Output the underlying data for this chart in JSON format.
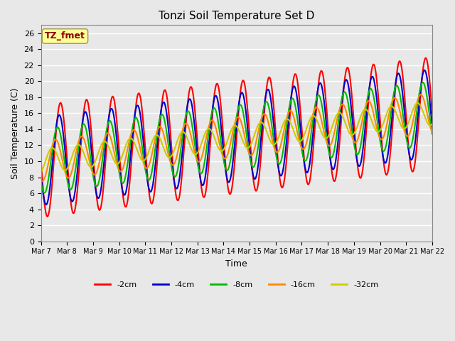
{
  "title": "Tonzi Soil Temperature Set D",
  "xlabel": "Time",
  "ylabel": "Soil Temperature (C)",
  "annotation": "TZ_fmet",
  "annotation_color": "#8B0000",
  "annotation_bg": "#FFFF99",
  "ylim": [
    0,
    27
  ],
  "yticks": [
    0,
    2,
    4,
    6,
    8,
    10,
    12,
    14,
    16,
    18,
    20,
    22,
    24,
    26
  ],
  "xtick_labels": [
    "Mar 7",
    "Mar 8",
    "Mar 9",
    "Mar 10",
    "Mar 11",
    "Mar 12",
    "Mar 13",
    "Mar 14",
    "Mar 15",
    "Mar 16",
    "Mar 17",
    "Mar 18",
    "Mar 19",
    "Mar 20",
    "Mar 21",
    "Mar 22"
  ],
  "series_labels": [
    "-2cm",
    "-4cm",
    "-8cm",
    "-16cm",
    "-32cm"
  ],
  "series_colors": [
    "#FF0000",
    "#0000CC",
    "#00BB00",
    "#FF8800",
    "#CCCC00"
  ],
  "series_linewidths": [
    1.5,
    1.5,
    1.5,
    1.5,
    1.5
  ],
  "bg_color": "#E8E8E8",
  "plot_bg": "#E8E8E8",
  "grid_color": "#FFFFFF",
  "num_days": 15,
  "points_per_day": 48
}
